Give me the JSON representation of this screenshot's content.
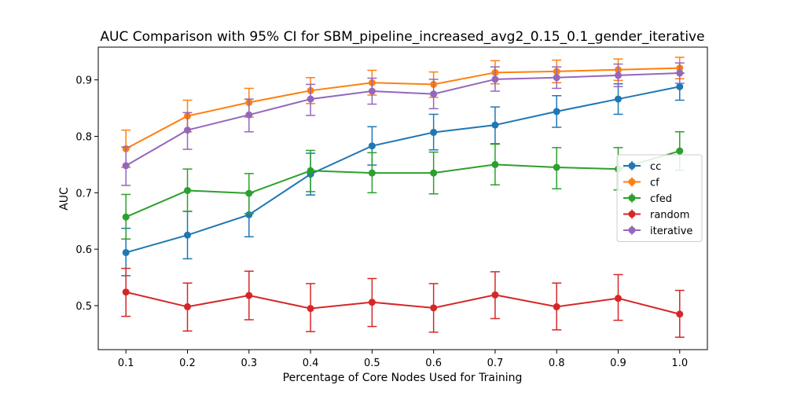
{
  "chart_data": {
    "type": "line",
    "title": "AUC Comparison with 95% CI for SBM_pipeline_increased_avg2_0.15_0.1_gender_iterative",
    "xlabel": "Percentage of Core Nodes Used for Training",
    "ylabel": "AUC",
    "x": [
      0.1,
      0.2,
      0.3,
      0.4,
      0.5,
      0.6,
      0.7,
      0.8,
      0.9,
      1.0
    ],
    "x_tick_labels": [
      "0.1",
      "0.2",
      "0.3",
      "0.4",
      "0.5",
      "0.6",
      "0.7",
      "0.8",
      "0.9",
      "1.0"
    ],
    "y_ticks": [
      0.5,
      0.6,
      0.7,
      0.8,
      0.9
    ],
    "y_tick_labels": [
      "0.5",
      "0.6",
      "0.7",
      "0.8",
      "0.9"
    ],
    "xlim": [
      0.055,
      1.045
    ],
    "ylim": [
      0.422,
      0.958
    ],
    "grid": false,
    "legend_position": "center-right",
    "series": [
      {
        "name": "cc",
        "color": "#1f77b4",
        "values": [
          0.594,
          0.625,
          0.661,
          0.733,
          0.783,
          0.807,
          0.82,
          0.844,
          0.866,
          0.888
        ],
        "ci_low": [
          0.553,
          0.583,
          0.622,
          0.696,
          0.749,
          0.776,
          0.787,
          0.816,
          0.839,
          0.864
        ],
        "ci_high": [
          0.637,
          0.667,
          0.7,
          0.77,
          0.817,
          0.839,
          0.852,
          0.872,
          0.893,
          0.912
        ]
      },
      {
        "name": "cf",
        "color": "#ff7f0e",
        "values": [
          0.778,
          0.836,
          0.86,
          0.881,
          0.895,
          0.892,
          0.913,
          0.915,
          0.918,
          0.921
        ],
        "ci_low": [
          0.745,
          0.808,
          0.834,
          0.858,
          0.873,
          0.869,
          0.893,
          0.895,
          0.899,
          0.902
        ],
        "ci_high": [
          0.811,
          0.864,
          0.885,
          0.904,
          0.917,
          0.914,
          0.934,
          0.935,
          0.937,
          0.94
        ]
      },
      {
        "name": "cfed",
        "color": "#2ca02c",
        "values": [
          0.657,
          0.704,
          0.699,
          0.739,
          0.735,
          0.735,
          0.75,
          0.745,
          0.742,
          0.774
        ],
        "ci_low": [
          0.618,
          0.667,
          0.663,
          0.702,
          0.7,
          0.698,
          0.714,
          0.707,
          0.705,
          0.74
        ],
        "ci_high": [
          0.697,
          0.742,
          0.734,
          0.775,
          0.771,
          0.772,
          0.786,
          0.78,
          0.78,
          0.808
        ]
      },
      {
        "name": "random",
        "color": "#d62728",
        "values": [
          0.524,
          0.498,
          0.518,
          0.495,
          0.506,
          0.496,
          0.519,
          0.498,
          0.513,
          0.485
        ],
        "ci_low": [
          0.481,
          0.455,
          0.475,
          0.454,
          0.463,
          0.453,
          0.477,
          0.457,
          0.474,
          0.444
        ],
        "ci_high": [
          0.566,
          0.54,
          0.561,
          0.539,
          0.548,
          0.539,
          0.56,
          0.54,
          0.555,
          0.527
        ]
      },
      {
        "name": "iterative",
        "color": "#9467bd",
        "values": [
          0.748,
          0.811,
          0.838,
          0.866,
          0.88,
          0.875,
          0.901,
          0.904,
          0.908,
          0.912
        ],
        "ci_low": [
          0.713,
          0.777,
          0.808,
          0.837,
          0.857,
          0.849,
          0.88,
          0.885,
          0.888,
          0.894
        ],
        "ci_high": [
          0.781,
          0.842,
          0.866,
          0.892,
          0.903,
          0.901,
          0.923,
          0.923,
          0.928,
          0.93
        ]
      }
    ]
  }
}
